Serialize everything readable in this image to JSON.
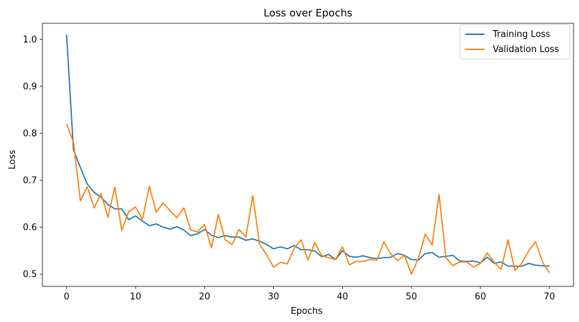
{
  "chart_data": {
    "type": "line",
    "title": "Loss over Epochs",
    "xlabel": "Epochs",
    "ylabel": "Loss",
    "xlim": [
      -3.5,
      73.5
    ],
    "ylim": [
      0.474,
      1.034
    ],
    "xticks": [
      0,
      10,
      20,
      30,
      40,
      50,
      60,
      70
    ],
    "yticks": [
      0.5,
      0.6,
      0.7,
      0.8,
      0.9,
      1.0
    ],
    "ytick_labels": [
      "0.5",
      "0.6",
      "0.7",
      "0.8",
      "0.9",
      "1.0"
    ],
    "grid": false,
    "legend": "top-right",
    "x": [
      0,
      1,
      2,
      3,
      4,
      5,
      6,
      7,
      8,
      9,
      10,
      11,
      12,
      13,
      14,
      15,
      16,
      17,
      18,
      19,
      20,
      21,
      22,
      23,
      24,
      25,
      26,
      27,
      28,
      29,
      30,
      31,
      32,
      33,
      34,
      35,
      36,
      37,
      38,
      39,
      40,
      41,
      42,
      43,
      44,
      45,
      46,
      47,
      48,
      49,
      50,
      51,
      52,
      53,
      54,
      55,
      56,
      57,
      58,
      59,
      60,
      61,
      62,
      63,
      64,
      65,
      66,
      67,
      68,
      69,
      70
    ],
    "series": [
      {
        "name": "Training Loss",
        "color": "#1f77b4",
        "values": [
          1.01,
          0.765,
          0.727,
          0.692,
          0.674,
          0.664,
          0.648,
          0.639,
          0.639,
          0.616,
          0.624,
          0.613,
          0.603,
          0.607,
          0.6,
          0.596,
          0.601,
          0.594,
          0.582,
          0.586,
          0.595,
          0.583,
          0.578,
          0.582,
          0.579,
          0.579,
          0.572,
          0.575,
          0.57,
          0.563,
          0.554,
          0.558,
          0.554,
          0.561,
          0.552,
          0.552,
          0.549,
          0.537,
          0.542,
          0.531,
          0.55,
          0.538,
          0.536,
          0.539,
          0.535,
          0.533,
          0.535,
          0.536,
          0.544,
          0.54,
          0.531,
          0.53,
          0.544,
          0.546,
          0.536,
          0.538,
          0.54,
          0.528,
          0.527,
          0.528,
          0.524,
          0.536,
          0.523,
          0.526,
          0.517,
          0.517,
          0.517,
          0.523,
          0.519,
          0.518,
          0.517
        ]
      },
      {
        "name": "Validation Loss",
        "color": "#ff7f0e",
        "values": [
          0.82,
          0.781,
          0.656,
          0.686,
          0.641,
          0.672,
          0.621,
          0.685,
          0.593,
          0.633,
          0.643,
          0.617,
          0.687,
          0.632,
          0.652,
          0.635,
          0.62,
          0.641,
          0.594,
          0.59,
          0.606,
          0.556,
          0.627,
          0.573,
          0.563,
          0.595,
          0.579,
          0.667,
          0.563,
          0.541,
          0.515,
          0.525,
          0.522,
          0.555,
          0.573,
          0.53,
          0.567,
          0.539,
          0.535,
          0.531,
          0.558,
          0.52,
          0.527,
          0.527,
          0.531,
          0.53,
          0.569,
          0.543,
          0.529,
          0.54,
          0.5,
          0.533,
          0.585,
          0.562,
          0.67,
          0.535,
          0.518,
          0.526,
          0.526,
          0.515,
          0.523,
          0.545,
          0.525,
          0.51,
          0.573,
          0.508,
          0.523,
          0.55,
          0.569,
          0.526,
          0.503
        ]
      }
    ]
  }
}
